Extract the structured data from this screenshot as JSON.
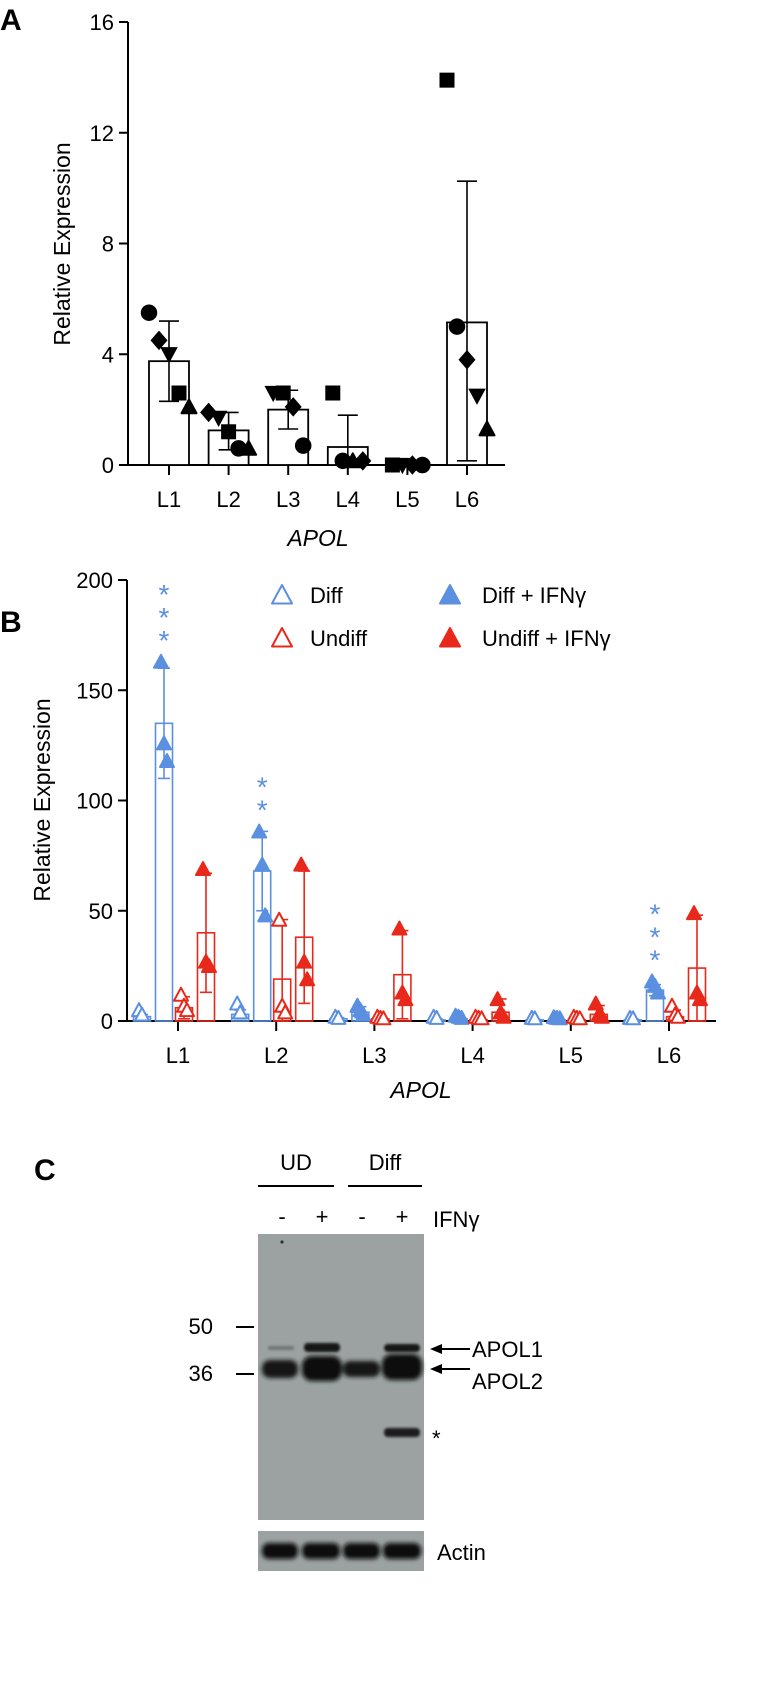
{
  "panels": {
    "a": "A",
    "b": "B",
    "c": "C"
  },
  "chart_data": [
    {
      "type": "bar",
      "panel": "A",
      "title": "",
      "ylabel": "Relative Expression",
      "xlabel": "APOL",
      "categories": [
        "L1",
        "L2",
        "L3",
        "L4",
        "L5",
        "L6"
      ],
      "yticks": [
        "0",
        "4",
        "8",
        "12",
        "16"
      ],
      "ylim": [
        0,
        16
      ],
      "means": [
        3.75,
        1.25,
        2.0,
        0.65,
        0.0,
        5.15
      ],
      "error_upper": [
        5.2,
        1.9,
        2.7,
        1.8,
        0.05,
        10.25
      ],
      "error_lower": [
        2.3,
        0.55,
        1.3,
        0.0,
        0.0,
        0.15
      ],
      "points": [
        [
          {
            "m": "circle",
            "v": 5.5
          },
          {
            "m": "diamond",
            "v": 4.5
          },
          {
            "m": "tri_down",
            "v": 4.0
          },
          {
            "m": "square",
            "v": 2.6
          },
          {
            "m": "tri_up",
            "v": 2.1
          }
        ],
        [
          {
            "m": "diamond",
            "v": 1.9
          },
          {
            "m": "tri_down",
            "v": 1.7
          },
          {
            "m": "square",
            "v": 1.2
          },
          {
            "m": "circle",
            "v": 0.6
          },
          {
            "m": "tri_up",
            "v": 0.6
          }
        ],
        [
          {
            "m": "tri_down",
            "v": 2.6
          },
          {
            "m": "square",
            "v": 2.6
          },
          {
            "m": "diamond",
            "v": 2.1
          },
          {
            "m": "circle",
            "v": 0.7
          }
        ],
        [
          {
            "m": "square",
            "v": 2.6
          },
          {
            "m": "circle",
            "v": 0.15
          },
          {
            "m": "tri_up",
            "v": 0.15
          },
          {
            "m": "diamond",
            "v": 0.15
          }
        ],
        [
          {
            "m": "square",
            "v": 0.0
          },
          {
            "m": "tri_down",
            "v": 0.0
          },
          {
            "m": "diamond",
            "v": 0.0
          },
          {
            "m": "circle",
            "v": 0.0
          }
        ],
        [
          {
            "m": "square",
            "v": 13.9
          },
          {
            "m": "circle",
            "v": 5.0
          },
          {
            "m": "diamond",
            "v": 3.8
          },
          {
            "m": "tri_down",
            "v": 2.5
          },
          {
            "m": "tri_up",
            "v": 1.3
          }
        ]
      ]
    },
    {
      "type": "bar",
      "panel": "B",
      "title": "",
      "ylabel": "Relative Expression",
      "xlabel": "APOL",
      "categories": [
        "L1",
        "L2",
        "L3",
        "L4",
        "L5",
        "L6"
      ],
      "yticks": [
        "0",
        "50",
        "100",
        "150",
        "200"
      ],
      "ylim": [
        0,
        200
      ],
      "legend_position": "top-right",
      "series": [
        {
          "name": "Diff",
          "color": "#5b8fe0",
          "filled": false,
          "values": [
            2,
            3,
            1,
            0.5,
            0.5,
            0.5
          ],
          "err": [
            1,
            2,
            0.5,
            0.5,
            0.3,
            0.3
          ],
          "points": [
            [
              4,
              2
            ],
            [
              7,
              3
            ],
            [
              1,
              0.5
            ],
            [
              1,
              0.5
            ],
            [
              0.5,
              0.3
            ],
            [
              0.5,
              0.3
            ]
          ]
        },
        {
          "name": "Diff + IFNγ",
          "color": "#5b8fe0",
          "filled": true,
          "values": [
            135,
            68,
            4,
            1,
            0.5,
            14
          ],
          "err": [
            25,
            18,
            2.5,
            0.8,
            0.3,
            2.5
          ],
          "points": [
            [
              162,
              125,
              117
            ],
            [
              85,
              70,
              47
            ],
            [
              6,
              4,
              2
            ],
            [
              1.5,
              1,
              0.5
            ],
            [
              0.8,
              0.5,
              0.3
            ],
            [
              17,
              15,
              12
            ]
          ]
        },
        {
          "name": "Undiff",
          "color": "#e8281b",
          "filled": false,
          "values": [
            6,
            19,
            1,
            0.5,
            0.5,
            2
          ],
          "err": [
            5,
            27,
            0.5,
            0.4,
            0.3,
            3
          ],
          "points": [
            [
              11,
              6,
              4
            ],
            [
              45,
              6,
              3
            ],
            [
              1,
              0.5,
              0.3
            ],
            [
              1,
              0.5,
              0.3
            ],
            [
              1,
              0.5,
              0.3
            ],
            [
              6,
              2,
              1
            ]
          ]
        },
        {
          "name": "Undiff + IFNγ",
          "color": "#e8281b",
          "filled": true,
          "values": [
            40,
            38,
            21,
            4,
            3,
            24
          ],
          "err": [
            27,
            30,
            20,
            6,
            4,
            24
          ],
          "points": [
            [
              68,
              26,
              24
            ],
            [
              70,
              26,
              18
            ],
            [
              41,
              12,
              9
            ],
            [
              9,
              3,
              1
            ],
            [
              7,
              2,
              1
            ],
            [
              48,
              12,
              9
            ]
          ]
        }
      ],
      "significance": [
        {
          "category": "L1",
          "label": "***"
        },
        {
          "category": "L2",
          "label": "**"
        },
        {
          "category": "L6",
          "label": "***"
        }
      ]
    }
  ],
  "blot": {
    "group_labels": [
      "UD",
      "Diff"
    ],
    "lane_signs": [
      "-",
      "+",
      "-",
      "+"
    ],
    "treatment_label": "IFNγ",
    "markers": [
      "50",
      "36"
    ],
    "bands": [
      "APOL1",
      "APOL2"
    ],
    "extra_band_label": "*",
    "loading_label": "Actin"
  }
}
